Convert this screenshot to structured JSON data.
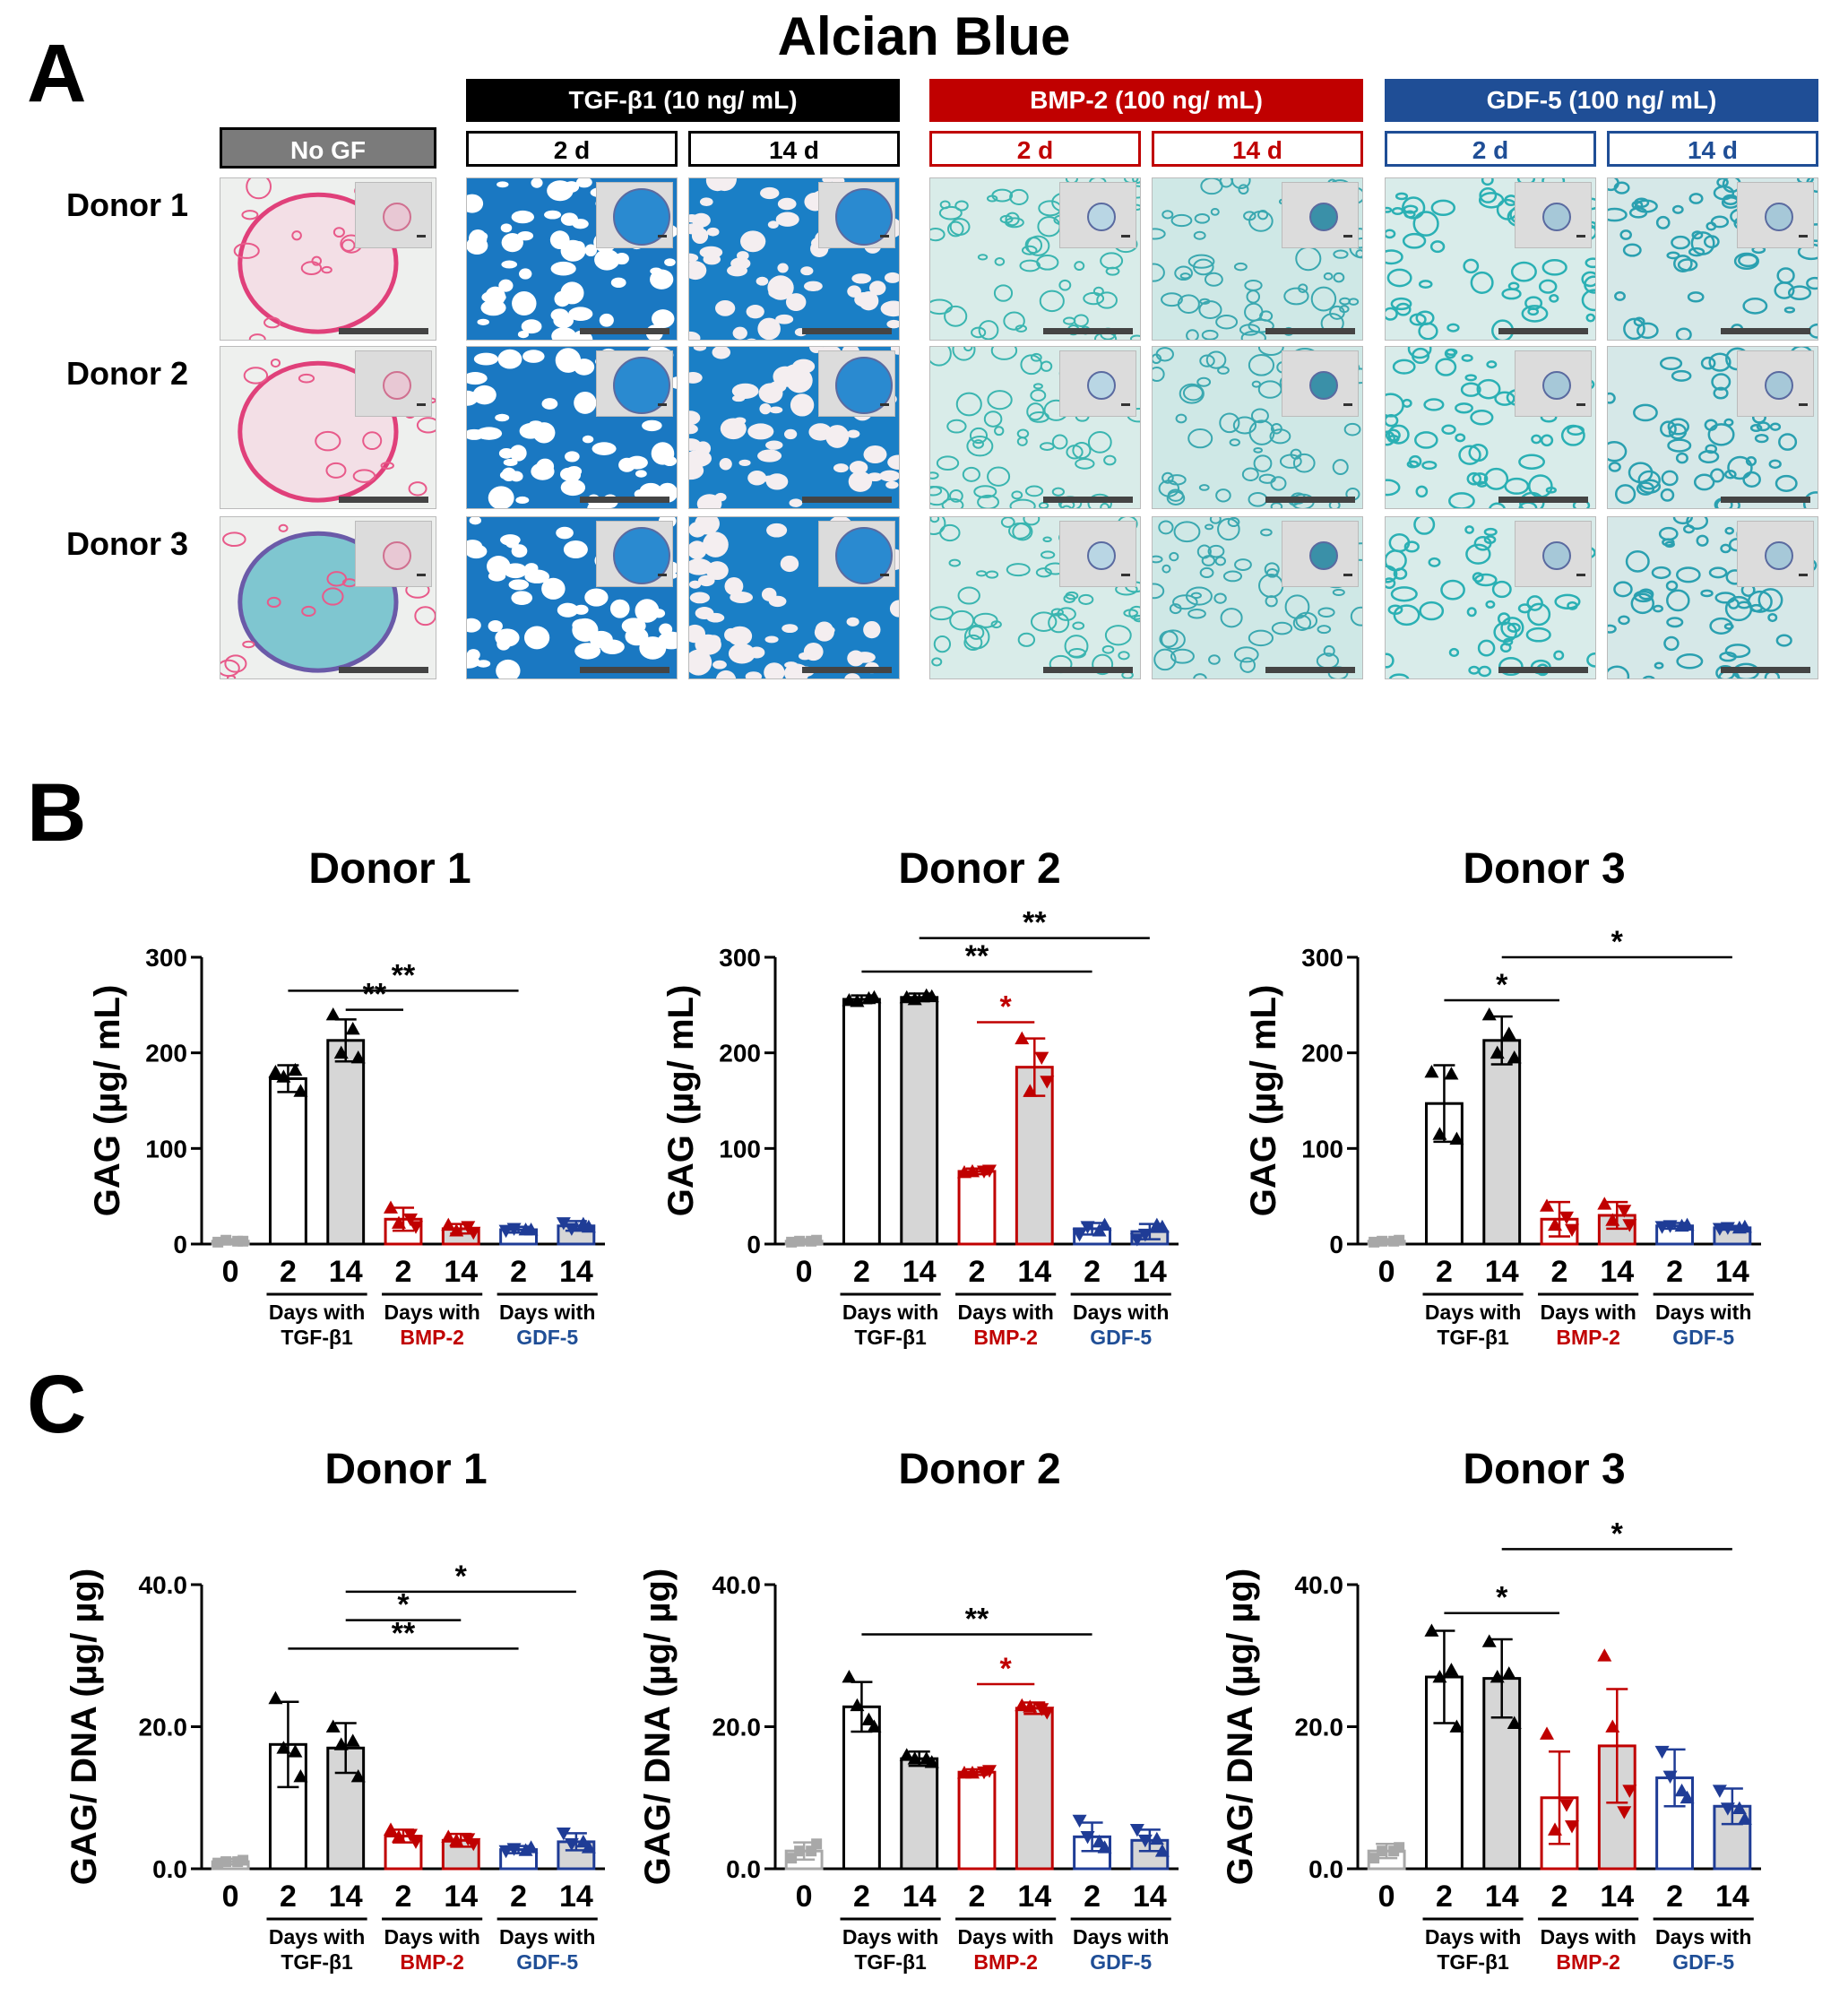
{
  "figure": {
    "title": "Alcian Blue",
    "panels": {
      "a": "A",
      "b": "B",
      "c": "C"
    }
  },
  "panel_a": {
    "no_gf_label": "No GF",
    "groups": [
      {
        "label": "TGF-β1 (10 ng/ mL)",
        "color": "#000000",
        "days": [
          "2 d",
          "14 d"
        ]
      },
      {
        "label": "BMP-2 (100 ng/ mL)",
        "color": "#c00000",
        "days": [
          "2 d",
          "14 d"
        ]
      },
      {
        "label": "GDF-5 (100 ng/ mL)",
        "color": "#1f4e96",
        "days": [
          "2 d",
          "14 d"
        ]
      }
    ],
    "donors": [
      "Donor 1",
      "Donor 2",
      "Donor 3"
    ]
  },
  "chart_data": [
    {
      "panel": "B",
      "type": "bar",
      "title": "Donor 1",
      "ylabel": "GAG (µg/ mL)",
      "ylim": [
        0,
        300
      ],
      "yticks": [
        0,
        100,
        200,
        300
      ],
      "ytick_labels": [
        "0",
        "100",
        "200",
        "300"
      ],
      "categories": [
        "0",
        "2",
        "14",
        "2",
        "14",
        "2",
        "14"
      ],
      "groups": [
        "",
        "TGF-β1",
        "TGF-β1",
        "BMP-2",
        "BMP-2",
        "GDF-5",
        "GDF-5"
      ],
      "values": [
        3,
        173,
        213,
        26,
        16,
        15,
        19
      ],
      "errors": [
        2,
        14,
        22,
        12,
        5,
        3,
        5
      ],
      "points": [
        [
          2,
          3,
          4,
          3
        ],
        [
          180,
          160,
          175,
          182
        ],
        [
          240,
          195,
          200,
          225
        ],
        [
          38,
          18,
          22,
          26
        ],
        [
          20,
          12,
          14,
          18
        ],
        [
          14,
          15,
          16,
          15
        ],
        [
          22,
          18,
          16,
          21
        ]
      ],
      "group_labels": [
        "Days with",
        "Days with",
        "Days with"
      ],
      "group_names": [
        "TGF-β1",
        "BMP-2",
        "GDF-5"
      ],
      "significance": [
        {
          "from": 2,
          "to": 3,
          "label": "**",
          "y": 245,
          "color": "#000000"
        },
        {
          "from": 1,
          "to": 5,
          "label": "**",
          "y": 265,
          "color": "#000000"
        }
      ]
    },
    {
      "panel": "B",
      "type": "bar",
      "title": "Donor 2",
      "ylabel": "GAG (µg/ mL)",
      "ylim": [
        0,
        300
      ],
      "yticks": [
        0,
        100,
        200,
        300
      ],
      "ytick_labels": [
        "0",
        "100",
        "200",
        "300"
      ],
      "categories": [
        "0",
        "2",
        "14",
        "2",
        "14",
        "2",
        "14"
      ],
      "groups": [
        "",
        "TGF-β1",
        "TGF-β1",
        "BMP-2",
        "BMP-2",
        "GDF-5",
        "GDF-5"
      ],
      "values": [
        3,
        256,
        258,
        76,
        185,
        16,
        13
      ],
      "errors": [
        2,
        4,
        4,
        3,
        30,
        6,
        8
      ],
      "points": [
        [
          2,
          4,
          3,
          3
        ],
        [
          255,
          258,
          254,
          257
        ],
        [
          258,
          259,
          256,
          260
        ],
        [
          75,
          77,
          76,
          76
        ],
        [
          215,
          170,
          160,
          195
        ],
        [
          10,
          20,
          18,
          14
        ],
        [
          5,
          18,
          10,
          20
        ]
      ],
      "group_labels": [
        "Days with",
        "Days with",
        "Days with"
      ],
      "group_names": [
        "TGF-β1",
        "BMP-2",
        "GDF-5"
      ],
      "significance": [
        {
          "from": 3,
          "to": 4,
          "label": "*",
          "y": 232,
          "color": "#c00000"
        },
        {
          "from": 1,
          "to": 5,
          "label": "**",
          "y": 285,
          "color": "#000000"
        },
        {
          "from": 2,
          "to": 6,
          "label": "**",
          "y": 320,
          "color": "#000000"
        }
      ]
    },
    {
      "panel": "B",
      "type": "bar",
      "title": "Donor 3",
      "ylabel": "GAG (µg/ mL)",
      "ylim": [
        0,
        300
      ],
      "yticks": [
        0,
        100,
        200,
        300
      ],
      "ytick_labels": [
        "0",
        "100",
        "200",
        "300"
      ],
      "categories": [
        "0",
        "2",
        "14",
        "2",
        "14",
        "2",
        "14"
      ],
      "groups": [
        "",
        "TGF-β1",
        "TGF-β1",
        "BMP-2",
        "BMP-2",
        "GDF-5",
        "GDF-5"
      ],
      "values": [
        3,
        147,
        213,
        26,
        30,
        19,
        17
      ],
      "errors": [
        2,
        40,
        25,
        18,
        14,
        3,
        2
      ],
      "points": [
        [
          2,
          4,
          3,
          3
        ],
        [
          180,
          110,
          115,
          178
        ],
        [
          240,
          195,
          200,
          220
        ],
        [
          40,
          15,
          20,
          28
        ],
        [
          42,
          20,
          25,
          35
        ],
        [
          18,
          20,
          19,
          19
        ],
        [
          16,
          18,
          17,
          17
        ]
      ],
      "group_labels": [
        "Days with",
        "Days with",
        "Days with"
      ],
      "group_names": [
        "TGF-β1",
        "BMP-2",
        "GDF-5"
      ],
      "significance": [
        {
          "from": 1,
          "to": 3,
          "label": "*",
          "y": 255,
          "color": "#000000"
        },
        {
          "from": 2,
          "to": 6,
          "label": "*",
          "y": 300,
          "color": "#000000"
        }
      ]
    },
    {
      "panel": "C",
      "type": "bar",
      "title": "Donor 1",
      "ylabel": "GAG/ DNA (µg/ µg)",
      "ylim": [
        0,
        40
      ],
      "yticks": [
        0,
        20,
        40
      ],
      "ytick_labels": [
        "0.0",
        "20.0",
        "40.0"
      ],
      "categories": [
        "0",
        "2",
        "14",
        "2",
        "14",
        "2",
        "14"
      ],
      "groups": [
        "",
        "TGF-β1",
        "TGF-β1",
        "BMP-2",
        "BMP-2",
        "GDF-5",
        "GDF-5"
      ],
      "values": [
        1.0,
        17.5,
        17.0,
        4.6,
        4.0,
        2.7,
        3.8
      ],
      "errors": [
        0.4,
        6.0,
        3.5,
        0.9,
        0.9,
        0.5,
        1.2
      ],
      "points": [
        [
          0.8,
          1.2,
          1.0,
          1.0
        ],
        [
          24.0,
          13.0,
          17.0,
          16.5
        ],
        [
          20.0,
          13.0,
          17.5,
          18.0
        ],
        [
          5.5,
          3.8,
          4.5,
          4.8
        ],
        [
          4.5,
          3.5,
          4.0,
          4.2
        ],
        [
          2.5,
          3.0,
          2.8,
          2.6
        ],
        [
          5.0,
          3.0,
          3.5,
          3.8
        ]
      ],
      "group_labels": [
        "Days with",
        "Days with",
        "Days with"
      ],
      "group_names": [
        "TGF-β1",
        "BMP-2",
        "GDF-5"
      ],
      "significance": [
        {
          "from": 1,
          "to": 5,
          "label": "**",
          "y": 31,
          "color": "#000000"
        },
        {
          "from": 2,
          "to": 4,
          "label": "*",
          "y": 35,
          "color": "#000000"
        },
        {
          "from": 2,
          "to": 6,
          "label": "*",
          "y": 39,
          "color": "#000000"
        }
      ]
    },
    {
      "panel": "C",
      "type": "bar",
      "title": "Donor 2",
      "ylabel": "GAG/ DNA (µg/ µg)",
      "ylim": [
        0,
        40
      ],
      "yticks": [
        0,
        20,
        40
      ],
      "ytick_labels": [
        "0.0",
        "20.0",
        "40.0"
      ],
      "categories": [
        "0",
        "2",
        "14",
        "2",
        "14",
        "2",
        "14"
      ],
      "groups": [
        "",
        "TGF-β1",
        "TGF-β1",
        "BMP-2",
        "BMP-2",
        "GDF-5",
        "GDF-5"
      ],
      "values": [
        2.5,
        22.8,
        15.5,
        13.6,
        22.6,
        4.5,
        4.0
      ],
      "errors": [
        1.2,
        3.5,
        1.0,
        0.4,
        0.8,
        2.0,
        1.5
      ],
      "points": [
        [
          1.5,
          3.5,
          2.5,
          2.5
        ],
        [
          27.0,
          20.0,
          23.0,
          21.0
        ],
        [
          16.0,
          15.0,
          15.5,
          15.5
        ],
        [
          13.5,
          13.8,
          13.5,
          13.6
        ],
        [
          23.0,
          22.0,
          22.8,
          22.5
        ],
        [
          6.8,
          3.0,
          4.5,
          3.8
        ],
        [
          5.5,
          2.5,
          4.0,
          4.2
        ]
      ],
      "group_labels": [
        "Days with",
        "Days with",
        "Days with"
      ],
      "group_names": [
        "TGF-β1",
        "BMP-2",
        "GDF-5"
      ],
      "significance": [
        {
          "from": 3,
          "to": 4,
          "label": "*",
          "y": 26,
          "color": "#c00000"
        },
        {
          "from": 1,
          "to": 5,
          "label": "**",
          "y": 33,
          "color": "#000000"
        }
      ]
    },
    {
      "panel": "C",
      "type": "bar",
      "title": "Donor 3",
      "ylabel": "GAG/ DNA (µg/ µg)",
      "ylim": [
        0,
        40
      ],
      "yticks": [
        0,
        20,
        40
      ],
      "ytick_labels": [
        "0.0",
        "20.0",
        "40.0"
      ],
      "categories": [
        "0",
        "2",
        "14",
        "2",
        "14",
        "2",
        "14"
      ],
      "groups": [
        "",
        "TGF-β1",
        "TGF-β1",
        "BMP-2",
        "BMP-2",
        "GDF-5",
        "GDF-5"
      ],
      "values": [
        2.5,
        27.0,
        26.8,
        10.0,
        17.3,
        12.8,
        8.8
      ],
      "errors": [
        1.0,
        6.5,
        5.5,
        6.5,
        8.0,
        4.0,
        2.5
      ],
      "points": [
        [
          1.5,
          3.0,
          2.5,
          2.5
        ],
        [
          33.5,
          20.0,
          27.0,
          28.0
        ],
        [
          32.0,
          20.5,
          27.0,
          27.5
        ],
        [
          19.0,
          6.0,
          5.5,
          9.0
        ],
        [
          30.0,
          11.0,
          20.0,
          8.0
        ],
        [
          16.5,
          10.0,
          13.0,
          11.0
        ],
        [
          11.0,
          7.0,
          8.5,
          8.5
        ]
      ],
      "group_labels": [
        "Days with",
        "Days with",
        "Days with"
      ],
      "group_names": [
        "TGF-β1",
        "BMP-2",
        "GDF-5"
      ],
      "significance": [
        {
          "from": 1,
          "to": 3,
          "label": "*",
          "y": 36,
          "color": "#000000"
        },
        {
          "from": 2,
          "to": 6,
          "label": "*",
          "y": 45,
          "color": "#000000"
        }
      ]
    }
  ]
}
